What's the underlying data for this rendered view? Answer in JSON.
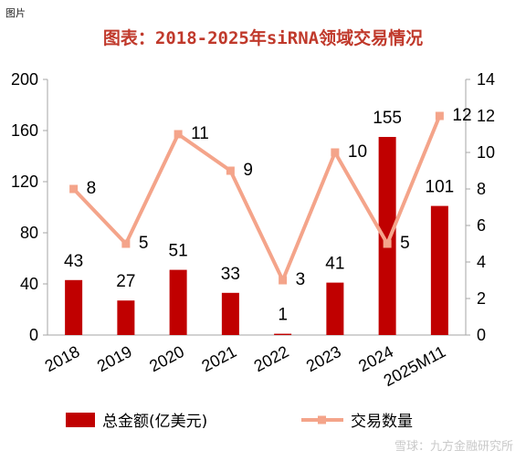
{
  "tag": "图片",
  "watermark": "雪球：九方金融研究所",
  "chart_data": {
    "type": "bar",
    "title": "图表：2018-2025年siRNA领域交易情况",
    "categories": [
      "2018",
      "2019",
      "2020",
      "2021",
      "2022",
      "2023",
      "2024",
      "2025M11"
    ],
    "series": [
      {
        "name": "总金额(亿美元)",
        "type": "bar",
        "axis": "left",
        "color": "#c00000",
        "values": [
          43,
          27,
          51,
          33,
          1,
          41,
          155,
          101
        ]
      },
      {
        "name": "交易数量",
        "type": "line",
        "axis": "right",
        "color": "#f4a48a",
        "values": [
          8,
          5,
          11,
          9,
          3,
          10,
          5,
          12
        ]
      }
    ],
    "y_left": {
      "min": 0,
      "max": 200,
      "ticks": [
        0,
        40,
        80,
        120,
        160,
        200
      ]
    },
    "y_right": {
      "min": 0,
      "max": 14,
      "ticks": [
        0,
        2,
        4,
        6,
        8,
        10,
        12,
        14
      ]
    },
    "legend": "bottom",
    "grid": false
  }
}
